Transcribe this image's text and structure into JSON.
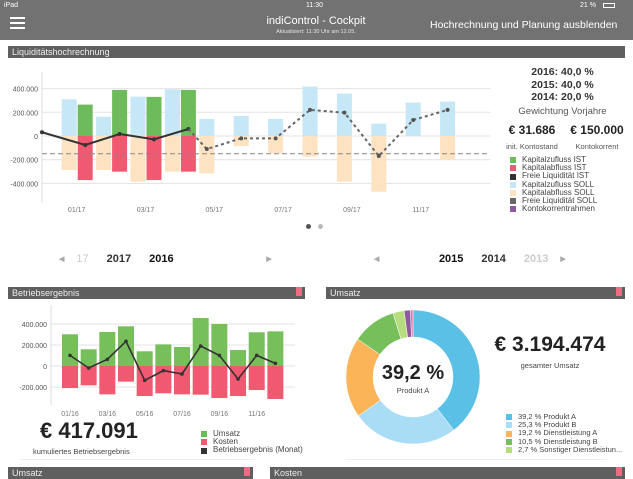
{
  "statusbar": {
    "device": "iPad",
    "time": "11:30",
    "battery": "21 %"
  },
  "header": {
    "title": "indiControl - Cockpit",
    "subtitle": "Aktualisiert: 11:30 Uhr am 12.05.",
    "action": "Hochrechnung und Planung ausblenden",
    "menu_icon": "hamburger-icon"
  },
  "liquidity": {
    "title": "Liquiditätshochrechnung",
    "weights": [
      "2016: 40,0 %",
      "2015: 40,0 %",
      "2014: 20,0 %"
    ],
    "weights_label": "Gewichtung Vorjahre",
    "init_balance": "€ 31.686",
    "init_balance_label": "init. Kontostand",
    "credit": "€ 150.000",
    "credit_label": "Kontokorrent",
    "legend": [
      {
        "label": "Kapitalzufluss IST",
        "color": "#6dbb5a"
      },
      {
        "label": "Kapitalabfluss IST",
        "color": "#f0596f"
      },
      {
        "label": "Freie Liquidität IST",
        "color": "#333333"
      },
      {
        "label": "Kapitalzufluss SOLL",
        "color": "#c6e7f6"
      },
      {
        "label": "Kapitalabfluss SOLL",
        "color": "#fde3c2"
      },
      {
        "label": "Freie Liquidität SOLL",
        "color": "#666666"
      },
      {
        "label": "Kontokorrentrahmen",
        "color": "#8e5a9e"
      }
    ]
  },
  "year_pickers": [
    {
      "items": [
        "17",
        "2017",
        "2016"
      ],
      "selected": "2016"
    },
    {
      "items": [
        "2015",
        "2014",
        "2013"
      ],
      "selected": "2015"
    }
  ],
  "betrieb": {
    "title": "Betriebsergebnis",
    "total": "€ 417.091",
    "total_label": "kumuliertes Betriebsergebnis",
    "legend": [
      {
        "label": "Umsatz",
        "color": "#6dbb5a"
      },
      {
        "label": "Kosten",
        "color": "#f0596f"
      },
      {
        "label": "Betriebsergebnis (Monat)",
        "color": "#333333"
      }
    ]
  },
  "umsatz": {
    "title": "Umsatz",
    "center_value": "39,2 %",
    "center_label": "Produkt A",
    "total": "€ 3.194.474",
    "total_label": "gesamter Umsatz"
  },
  "bottom": {
    "left_title": "Umsatz",
    "right_title": "Kosten"
  },
  "chart_data": [
    {
      "type": "bar",
      "title": "Liquiditätshochrechnung",
      "categories": [
        "01/17",
        "02/17",
        "03/17",
        "04/17",
        "05/17",
        "06/17",
        "07/17",
        "08/17",
        "09/17",
        "10/17",
        "11/17",
        "12/17"
      ],
      "tick_labels": [
        "01/17",
        "03/17",
        "05/17",
        "07/17",
        "09/17",
        "11/17"
      ],
      "y_ticks": [
        "400.000",
        "200.000",
        "0",
        "-200.000",
        "-400.000"
      ],
      "ylim": [
        -500000,
        500000
      ],
      "series": [
        {
          "name": "Kapitalzufluss IST",
          "values": [
            265000,
            389000,
            330000,
            389000,
            null,
            null,
            null,
            null,
            null,
            null,
            null,
            null
          ]
        },
        {
          "name": "Kapitalabfluss IST",
          "values": [
            -372000,
            -301000,
            -372000,
            -301000,
            null,
            null,
            null,
            null,
            null,
            null,
            null,
            null
          ]
        },
        {
          "name": "Kapitalzufluss SOLL",
          "values": [
            310000,
            163000,
            332000,
            394000,
            144000,
            169000,
            144000,
            417000,
            358000,
            104000,
            282000,
            290000
          ]
        },
        {
          "name": "Kapitalabfluss SOLL",
          "values": [
            -287000,
            -287000,
            -386000,
            -301000,
            -315000,
            -85000,
            -146000,
            -175000,
            -386000,
            -470000,
            0,
            -203000
          ]
        },
        {
          "name": "Freie Liquidität IST",
          "start": 31686,
          "values": [
            -76000,
            17000,
            -28000,
            59000,
            null,
            null,
            null,
            null,
            null,
            null,
            null,
            null
          ]
        },
        {
          "name": "Freie Liquidität SOLL",
          "values": [
            null,
            null,
            null,
            59000,
            -110000,
            -20000,
            -20000,
            220000,
            197000,
            -169000,
            135000,
            220000
          ]
        },
        {
          "name": "Kontokorrentrahmen",
          "value": -150000
        }
      ],
      "grid": true
    },
    {
      "type": "bar",
      "title": "Betriebsergebnis",
      "categories": [
        "01/16",
        "02/16",
        "03/16",
        "04/16",
        "05/16",
        "06/16",
        "07/16",
        "08/16",
        "09/16",
        "10/16",
        "11/16",
        "12/16"
      ],
      "tick_labels": [
        "01/16",
        "03/16",
        "05/16",
        "07/16",
        "09/16",
        "11/16"
      ],
      "y_ticks": [
        "400.000",
        "200.000",
        "0",
        "-200.000"
      ],
      "ylim": [
        -380000,
        520000
      ],
      "series": [
        {
          "name": "Umsatz",
          "values": [
            302000,
            159000,
            324000,
            378000,
            140000,
            206000,
            181000,
            457000,
            400000,
            152000,
            321000,
            330000
          ]
        },
        {
          "name": "Kosten",
          "values": [
            -210000,
            -184000,
            -270000,
            -149000,
            -286000,
            -260000,
            -270000,
            -273000,
            -305000,
            -286000,
            -229000,
            -314000
          ]
        },
        {
          "name": "Betriebsergebnis (Monat)",
          "values": [
            101000,
            -19000,
            63000,
            235000,
            -137000,
            -44000,
            -76000,
            190000,
            101000,
            -124000,
            101000,
            25000
          ]
        }
      ],
      "grid": true
    },
    {
      "type": "pie",
      "title": "Umsatz",
      "slices": [
        {
          "label": "39,2 % Produkt A",
          "value": 39.2,
          "color": "#5bc0e6"
        },
        {
          "label": "25,3 % Produkt B",
          "value": 25.3,
          "color": "#a9dcf5"
        },
        {
          "label": "19,2 % Dienstleistung A",
          "value": 19.2,
          "color": "#fbb457"
        },
        {
          "label": "10,5 % Dienstleistung B",
          "value": 10.5,
          "color": "#76bf5b"
        },
        {
          "label": "2,7 % Sonstiger Dienstleistun...",
          "value": 2.7,
          "color": "#b7dc7d"
        },
        {
          "value": 1.5,
          "color": "#8e5a9e"
        },
        {
          "value": 0.6,
          "color": "#e07aa8"
        }
      ]
    }
  ]
}
